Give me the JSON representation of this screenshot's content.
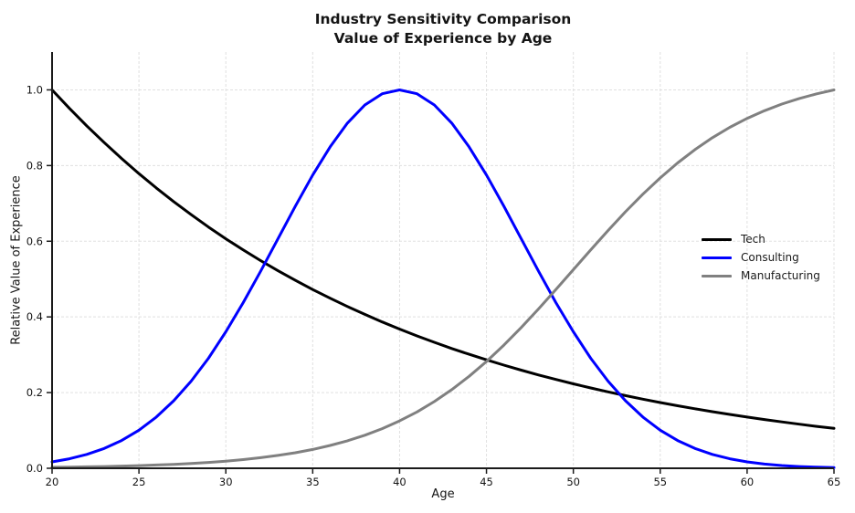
{
  "figure": {
    "title": "Industry Sensitivity Comparison",
    "subtitle": "Value of Experience by Age",
    "xlabel": "Age",
    "ylabel": "Relative Value of Experience"
  },
  "legend": {
    "position": "center-right",
    "entries": [
      {
        "label": "Tech",
        "color": "#000000"
      },
      {
        "label": "Consulting",
        "color": "#0000ff"
      },
      {
        "label": "Manufacturing",
        "color": "#808080"
      }
    ]
  },
  "colors": {
    "tech": "#000000",
    "consulting": "#0000ff",
    "manufacturing": "#808080",
    "grid": "#e0e0e0",
    "spine": "#1a1a1a",
    "text": "#141414"
  },
  "chart_data": {
    "type": "line",
    "title": "Industry Sensitivity Comparison",
    "subtitle": "Value of Experience by Age",
    "xlabel": "Age",
    "ylabel": "Relative Value of Experience",
    "xlim": [
      20,
      65
    ],
    "ylim": [
      0,
      1.1
    ],
    "xticks": [
      20,
      25,
      30,
      35,
      40,
      45,
      50,
      55,
      60,
      65
    ],
    "xtick_labels": [
      "20",
      "25",
      "30",
      "35",
      "40",
      "45",
      "50",
      "55",
      "60",
      "65"
    ],
    "yticks": [
      0.0,
      0.2,
      0.4,
      0.6,
      0.8,
      1.0
    ],
    "ytick_labels": [
      "0.0",
      "0.2",
      "0.4",
      "0.6",
      "0.8",
      "1.0"
    ],
    "grid": true,
    "legend_position": "center right",
    "x": [
      20,
      21,
      22,
      23,
      24,
      25,
      26,
      27,
      28,
      29,
      30,
      31,
      32,
      33,
      34,
      35,
      36,
      37,
      38,
      39,
      40,
      41,
      42,
      43,
      44,
      45,
      46,
      47,
      48,
      49,
      50,
      51,
      52,
      53,
      54,
      55,
      56,
      57,
      58,
      59,
      60,
      61,
      62,
      63,
      64,
      65
    ],
    "series": [
      {
        "name": "Tech",
        "color": "#000000",
        "values": [
          1.0,
          0.9512,
          0.9048,
          0.8607,
          0.8187,
          0.7788,
          0.7408,
          0.7047,
          0.6703,
          0.6376,
          0.6065,
          0.5769,
          0.5488,
          0.522,
          0.4966,
          0.4724,
          0.4493,
          0.4274,
          0.4066,
          0.3867,
          0.3679,
          0.3499,
          0.3329,
          0.3166,
          0.3012,
          0.2865,
          0.2725,
          0.2592,
          0.2466,
          0.2346,
          0.2231,
          0.2122,
          0.2019,
          0.192,
          0.1827,
          0.1738,
          0.1653,
          0.1572,
          0.1496,
          0.1423,
          0.1353,
          0.1287,
          0.1225,
          0.1165,
          0.1108,
          0.1054
        ]
      },
      {
        "name": "Consulting",
        "color": "#0000ff",
        "values": [
          0.0169,
          0.0251,
          0.0366,
          0.0524,
          0.0734,
          0.1007,
          0.1353,
          0.1784,
          0.2301,
          0.2908,
          0.3606,
          0.4377,
          0.5205,
          0.6065,
          0.6926,
          0.7749,
          0.8494,
          0.9123,
          0.96,
          0.9898,
          1.0,
          0.9898,
          0.96,
          0.9123,
          0.8494,
          0.7749,
          0.6926,
          0.6065,
          0.5205,
          0.4377,
          0.3606,
          0.2908,
          0.2301,
          0.1784,
          0.1353,
          0.1007,
          0.0734,
          0.0524,
          0.0366,
          0.0251,
          0.0169,
          0.0112,
          0.0073,
          0.0047,
          0.0029,
          0.0017
        ]
      },
      {
        "name": "Manufacturing",
        "color": "#808080",
        "values": [
          0.0026,
          0.0032,
          0.0039,
          0.0047,
          0.0058,
          0.007,
          0.0086,
          0.0104,
          0.0127,
          0.0155,
          0.0189,
          0.023,
          0.0279,
          0.0339,
          0.0411,
          0.0498,
          0.0602,
          0.0726,
          0.0873,
          0.1047,
          0.1251,
          0.1489,
          0.1763,
          0.2077,
          0.243,
          0.2823,
          0.3255,
          0.372,
          0.4213,
          0.4726,
          0.5249,
          0.5772,
          0.6285,
          0.6778,
          0.7243,
          0.7674,
          0.8068,
          0.8421,
          0.8734,
          0.9009,
          0.9246,
          0.945,
          0.9625,
          0.9772,
          0.9896,
          1.0
        ]
      }
    ]
  }
}
